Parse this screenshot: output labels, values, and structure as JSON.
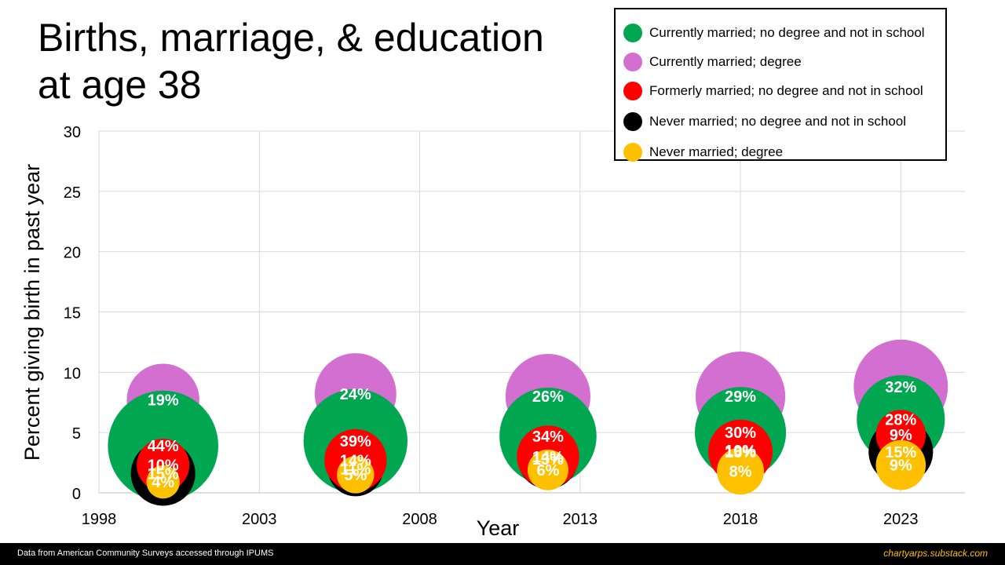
{
  "title_line1": "Births, marriage, & education",
  "title_line2": "at age 38",
  "footer": {
    "source": "Data from American Community Surveys accessed through IPUMS",
    "site": "chartyarps.substack.com"
  },
  "chart_data": {
    "type": "bubble",
    "xlabel": "Year",
    "ylabel": "Percent giving birth in past year",
    "xlim": [
      1998,
      2025
    ],
    "ylim": [
      0,
      30
    ],
    "xticks": [
      1998,
      2003,
      2008,
      2013,
      2018,
      2023
    ],
    "yticks": [
      0,
      5,
      10,
      15,
      20,
      25,
      30
    ],
    "grid": true,
    "legend_position": "top-right",
    "bubble_label": "share of women in group",
    "series": [
      {
        "name": "Currently married; degree",
        "color": "#d36fd0",
        "label_color": "#ffffff",
        "points": [
          {
            "x": 2000,
            "y": 7.7,
            "size": 19,
            "label": "19%"
          },
          {
            "x": 2006,
            "y": 8.2,
            "size": 24,
            "label": "24%"
          },
          {
            "x": 2012,
            "y": 8.0,
            "size": 26,
            "label": "26%"
          },
          {
            "x": 2018,
            "y": 8.0,
            "size": 29,
            "label": "29%"
          },
          {
            "x": 2023,
            "y": 8.8,
            "size": 32,
            "label": "32%"
          }
        ]
      },
      {
        "name": "Currently married; no degree and not in school",
        "color": "#00a650",
        "label_color": "#ffffff",
        "points": [
          {
            "x": 2000,
            "y": 3.9,
            "size": 44,
            "label": "44%"
          },
          {
            "x": 2006,
            "y": 4.3,
            "size": 39,
            "label": "39%"
          },
          {
            "x": 2012,
            "y": 4.7,
            "size": 34,
            "label": "34%"
          },
          {
            "x": 2018,
            "y": 5.0,
            "size": 30,
            "label": "30%"
          },
          {
            "x": 2023,
            "y": 6.1,
            "size": 28,
            "label": "28%"
          }
        ]
      },
      {
        "name": "Never married; no degree and not in school",
        "color": "#000000",
        "label_color": "#ffffff",
        "points": [
          {
            "x": 2000,
            "y": 1.6,
            "size": 15,
            "label": "15%"
          },
          {
            "x": 2006,
            "y": 2.0,
            "size": 11,
            "label": "11%"
          },
          {
            "x": 2012,
            "y": 2.8,
            "size": 13,
            "label": "13%"
          },
          {
            "x": 2018,
            "y": 3.5,
            "size": 10,
            "label": "10%"
          },
          {
            "x": 2023,
            "y": 3.4,
            "size": 15,
            "label": "15%"
          }
        ]
      },
      {
        "name": "Formerly married; no degree and not in school",
        "color": "#ff0000",
        "label_color": "#ffffff",
        "points": [
          {
            "x": 2000,
            "y": 2.3,
            "size": 10,
            "label": "10%"
          },
          {
            "x": 2006,
            "y": 2.7,
            "size": 14,
            "label": "14%"
          },
          {
            "x": 2012,
            "y": 3.0,
            "size": 14,
            "label": "14%"
          },
          {
            "x": 2018,
            "y": 3.4,
            "size": 15,
            "label": "15%"
          },
          {
            "x": 2023,
            "y": 4.8,
            "size": 9,
            "label": "9%"
          }
        ]
      },
      {
        "name": "Never married; degree",
        "color": "#ffc000",
        "label_color": "#ffffff",
        "points": [
          {
            "x": 2000,
            "y": 0.9,
            "size": 4,
            "label": "4%"
          },
          {
            "x": 2006,
            "y": 1.5,
            "size": 5,
            "label": "5%"
          },
          {
            "x": 2012,
            "y": 1.9,
            "size": 6,
            "label": "6%"
          },
          {
            "x": 2018,
            "y": 1.8,
            "size": 8,
            "label": "8%"
          },
          {
            "x": 2023,
            "y": 2.3,
            "size": 9,
            "label": "9%"
          }
        ]
      }
    ],
    "legend": [
      {
        "name": "Currently married; no degree and not in school",
        "color": "#00a650"
      },
      {
        "name": "Currently married; degree",
        "color": "#d36fd0"
      },
      {
        "name": "Formerly married; no degree and not in school",
        "color": "#ff0000"
      },
      {
        "name": "Never married; no degree and not in school",
        "color": "#000000"
      },
      {
        "name": "Never married; degree",
        "color": "#ffc000"
      }
    ]
  }
}
